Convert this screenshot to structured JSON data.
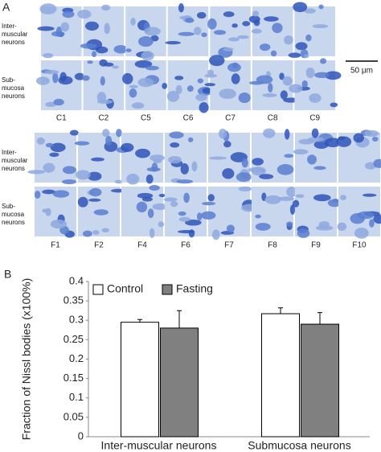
{
  "panel_a": {
    "label": "A",
    "row_labels": [
      "Inter-muscular neurons",
      "Sub-mucosa neurons"
    ],
    "scale_bar": "50 μm",
    "control_columns": [
      "C1",
      "C2",
      "C5",
      "C6",
      "C7",
      "C8",
      "C9"
    ],
    "fasting_columns": [
      "F1",
      "F2",
      "F4",
      "F6",
      "F7",
      "F8",
      "F9",
      "F10"
    ]
  },
  "chart_data": {
    "type": "bar",
    "panel_label": "B",
    "y_label": "Fraction of Nissl bodies (x100%)",
    "categories": [
      "Inter-muscular neurons",
      "Submucosa neurons"
    ],
    "series": [
      {
        "name": "Control",
        "color": "#ffffff",
        "values": [
          0.295,
          0.317
        ],
        "errors": [
          0.007,
          0.015
        ]
      },
      {
        "name": "Fasting",
        "color": "#808080",
        "values": [
          0.28,
          0.29
        ],
        "errors": [
          0.045,
          0.03
        ]
      }
    ],
    "ylim": [
      0,
      0.4
    ],
    "yticks": [
      0,
      0.05,
      0.1,
      0.15,
      0.2,
      0.25,
      0.3,
      0.35,
      0.4
    ],
    "legend": "top-left"
  }
}
